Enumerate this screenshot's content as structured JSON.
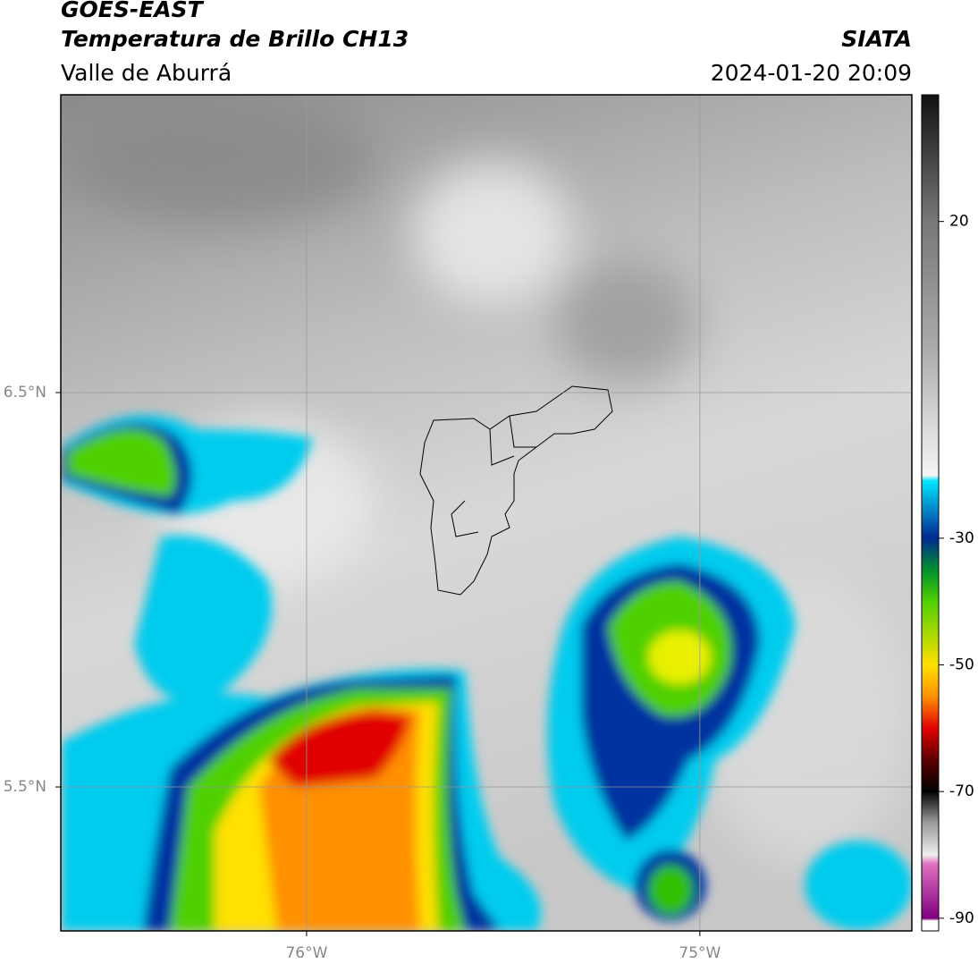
{
  "header": {
    "title": "GOES-EAST",
    "subtitle": "Temperatura de Brillo CH13",
    "region": "Valle de Aburrá",
    "source": "SIATA",
    "datetime": "2024-01-20 20:09"
  },
  "map": {
    "xlim": [
      -76.625,
      -74.461
    ],
    "ylim": [
      5.135,
      7.255
    ],
    "xticks": [
      {
        "value": -76,
        "label": "76°W"
      },
      {
        "value": -75,
        "label": "75°W"
      }
    ],
    "yticks": [
      {
        "value": 5.5,
        "label": "5.5°N"
      },
      {
        "value": 6.5,
        "label": "6.5°N"
      }
    ]
  },
  "colorbar": {
    "lim": [
      -92,
      40
    ],
    "ticks": [
      20,
      -30,
      -50,
      -70,
      -90
    ]
  }
}
